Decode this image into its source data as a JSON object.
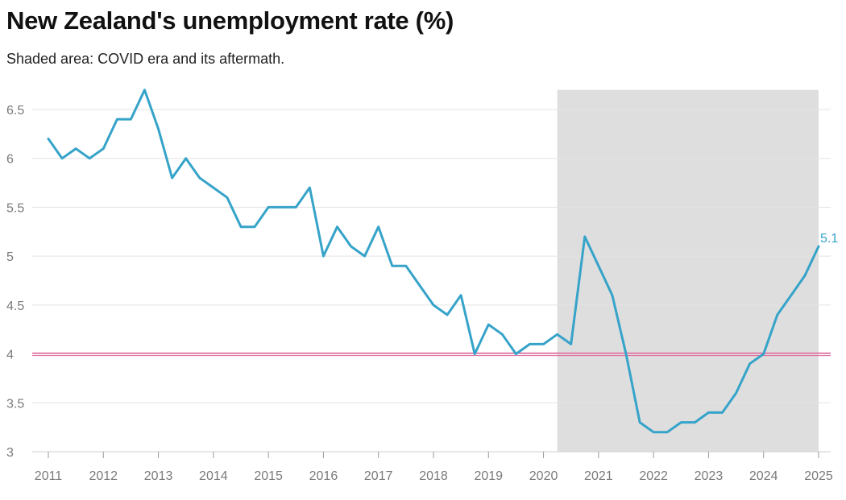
{
  "title": "New Zealand's unemployment rate (%)",
  "subtitle": "Shaded area: COVID era and its aftermath.",
  "colors": {
    "line": "#36a3c9",
    "reference": "#e0609a",
    "shade": "#dedede",
    "grid": "#e3e3e3",
    "tick_text": "#7a7a7a"
  },
  "chart_data": {
    "type": "line",
    "title": "New Zealand's unemployment rate (%)",
    "subtitle": "Shaded area: COVID era and its aftermath.",
    "xlabel": "",
    "ylabel": "",
    "xlim": [
      2010.875,
      2025
    ],
    "ylim": [
      3,
      6.7
    ],
    "x_ticks": [
      "2011",
      "2012",
      "2013",
      "2014",
      "2015",
      "2016",
      "2017",
      "2018",
      "2019",
      "2020",
      "2021",
      "2022",
      "2023",
      "2024",
      "2025"
    ],
    "y_ticks": [
      "3",
      "3.5",
      "4",
      "4.5",
      "5",
      "5.5",
      "6",
      "6.5"
    ],
    "grid": true,
    "reference_line": 4,
    "shaded_range": [
      2020.25,
      2025
    ],
    "end_label": "5.1",
    "series": [
      {
        "x": [
          2011.0,
          2011.25,
          2011.5,
          2011.75,
          2012.0,
          2012.25,
          2012.5,
          2012.75,
          2013.0,
          2013.25,
          2013.5,
          2013.75,
          2014.0,
          2014.25,
          2014.5,
          2014.75,
          2015.0,
          2015.25,
          2015.5,
          2015.75,
          2016.0,
          2016.25,
          2016.5,
          2016.75,
          2017.0,
          2017.25,
          2017.5,
          2017.75,
          2018.0,
          2018.25,
          2018.5,
          2018.75,
          2019.0,
          2019.25,
          2019.5,
          2019.75,
          2020.0,
          2020.25,
          2020.5,
          2020.75,
          2021.0,
          2021.25,
          2021.5,
          2021.75,
          2022.0,
          2022.25,
          2022.5,
          2022.75,
          2023.0,
          2023.25,
          2023.5,
          2023.75,
          2024.0,
          2024.25,
          2024.5,
          2024.75,
          2025.0
        ],
        "values": [
          6.2,
          6.0,
          6.1,
          6.0,
          6.1,
          6.4,
          6.4,
          6.7,
          6.3,
          5.8,
          6.0,
          5.8,
          5.7,
          5.6,
          5.3,
          5.3,
          5.5,
          5.5,
          5.5,
          5.7,
          5.0,
          5.3,
          5.1,
          5.0,
          5.3,
          4.9,
          4.9,
          4.7,
          4.5,
          4.4,
          4.6,
          4.0,
          4.3,
          4.2,
          4.0,
          4.1,
          4.1,
          4.2,
          4.1,
          5.2,
          4.9,
          4.6,
          4.0,
          3.3,
          3.2,
          3.2,
          3.3,
          3.3,
          3.4,
          3.4,
          3.6,
          3.9,
          4.0,
          4.4,
          4.6,
          4.8,
          5.1
        ]
      }
    ]
  }
}
